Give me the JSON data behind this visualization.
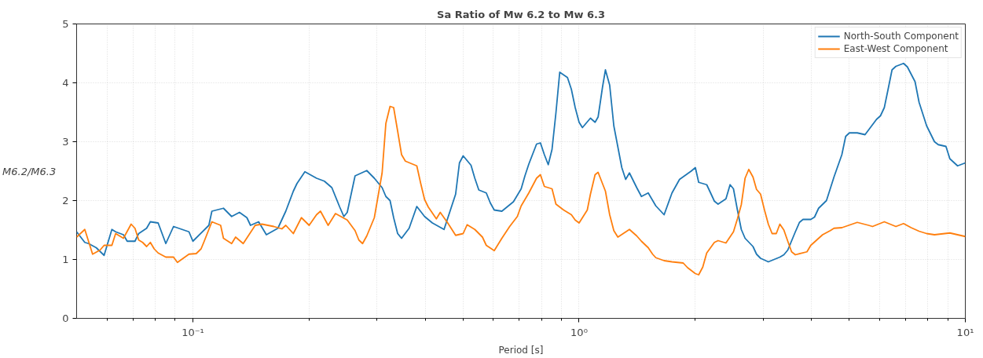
{
  "chart_data": {
    "type": "line",
    "title": "Sa Ratio of Mw 6.2 to Mw 6.3",
    "xlabel": "Period [s]",
    "ylabel": "M6.2/M6.3",
    "log": "x",
    "grid": true,
    "legend": "top right",
    "line_style": "solid",
    "marker": "none",
    "xlim": [
      0.05,
      10
    ],
    "ylim": [
      0,
      5
    ],
    "xticks": [
      {
        "value": 0.06,
        "label": null
      },
      {
        "value": 0.07,
        "label": null
      },
      {
        "value": 0.08,
        "label": null
      },
      {
        "value": 0.09,
        "label": null
      },
      {
        "value": 0.1,
        "label": "10⁻¹"
      },
      {
        "value": 0.2,
        "label": null
      },
      {
        "value": 0.3,
        "label": null
      },
      {
        "value": 0.4,
        "label": null
      },
      {
        "value": 0.5,
        "label": null
      },
      {
        "value": 0.6,
        "label": null
      },
      {
        "value": 0.7,
        "label": null
      },
      {
        "value": 0.8,
        "label": null
      },
      {
        "value": 0.9,
        "label": null
      },
      {
        "value": 1,
        "label": "10⁰"
      },
      {
        "value": 2,
        "label": null
      },
      {
        "value": 3,
        "label": null
      },
      {
        "value": 4,
        "label": null
      },
      {
        "value": 5,
        "label": null
      },
      {
        "value": 6,
        "label": null
      },
      {
        "value": 7,
        "label": null
      },
      {
        "value": 8,
        "label": null
      },
      {
        "value": 9,
        "label": null
      },
      {
        "value": 10,
        "label": "10¹"
      }
    ],
    "yticks": [
      0,
      1,
      2,
      3,
      4,
      5
    ],
    "series": [
      {
        "name": "North-South Component",
        "color": "#1f77b4",
        "x": [
          0.05,
          0.0525,
          0.0537,
          0.0562,
          0.0589,
          0.0617,
          0.0631,
          0.0661,
          0.0676,
          0.0708,
          0.0724,
          0.0759,
          0.0776,
          0.0813,
          0.0851,
          0.0891,
          0.0977,
          0.1,
          0.11,
          0.112,
          0.12,
          0.126,
          0.132,
          0.138,
          0.141,
          0.148,
          0.155,
          0.166,
          0.174,
          0.182,
          0.186,
          0.195,
          0.209,
          0.219,
          0.229,
          0.24,
          0.246,
          0.251,
          0.263,
          0.282,
          0.295,
          0.309,
          0.316,
          0.324,
          0.331,
          0.339,
          0.347,
          0.363,
          0.38,
          0.398,
          0.417,
          0.447,
          0.479,
          0.49,
          0.501,
          0.525,
          0.537,
          0.55,
          0.575,
          0.589,
          0.603,
          0.631,
          0.676,
          0.708,
          0.724,
          0.741,
          0.776,
          0.794,
          0.813,
          0.832,
          0.851,
          0.871,
          0.891,
          0.933,
          0.955,
          0.977,
          1.0,
          1.02,
          1.07,
          1.1,
          1.12,
          1.15,
          1.17,
          1.2,
          1.23,
          1.29,
          1.32,
          1.35,
          1.41,
          1.45,
          1.51,
          1.58,
          1.66,
          1.74,
          1.82,
          1.95,
          2.0,
          2.04,
          2.14,
          2.19,
          2.24,
          2.29,
          2.4,
          2.46,
          2.51,
          2.57,
          2.63,
          2.69,
          2.82,
          2.88,
          2.95,
          3.09,
          3.31,
          3.39,
          3.47,
          3.63,
          3.72,
          3.8,
          3.98,
          4.07,
          4.17,
          4.37,
          4.57,
          4.79,
          4.9,
          5.01,
          5.25,
          5.5,
          5.89,
          6.03,
          6.17,
          6.31,
          6.46,
          6.61,
          6.92,
          7.08,
          7.41,
          7.59,
          7.94,
          8.32,
          8.51,
          8.91,
          9.12,
          9.55,
          10
        ],
        "values": [
          1.47,
          1.29,
          1.27,
          1.2,
          1.07,
          1.51,
          1.47,
          1.42,
          1.31,
          1.31,
          1.44,
          1.53,
          1.64,
          1.62,
          1.27,
          1.56,
          1.47,
          1.31,
          1.58,
          1.82,
          1.87,
          1.73,
          1.8,
          1.71,
          1.58,
          1.64,
          1.42,
          1.53,
          1.82,
          2.16,
          2.29,
          2.49,
          2.38,
          2.33,
          2.22,
          1.89,
          1.73,
          1.8,
          2.42,
          2.51,
          2.38,
          2.22,
          2.07,
          2.0,
          1.71,
          1.44,
          1.36,
          1.53,
          1.9,
          1.73,
          1.62,
          1.51,
          2.11,
          2.64,
          2.76,
          2.6,
          2.38,
          2.18,
          2.13,
          1.96,
          1.84,
          1.82,
          1.98,
          2.2,
          2.42,
          2.62,
          2.96,
          2.98,
          2.78,
          2.61,
          2.87,
          3.49,
          4.18,
          4.09,
          3.89,
          3.58,
          3.33,
          3.24,
          3.4,
          3.33,
          3.42,
          3.93,
          4.22,
          3.96,
          3.27,
          2.56,
          2.36,
          2.47,
          2.22,
          2.07,
          2.13,
          1.91,
          1.76,
          2.13,
          2.36,
          2.5,
          2.56,
          2.31,
          2.27,
          2.13,
          1.99,
          1.94,
          2.03,
          2.27,
          2.2,
          1.84,
          1.51,
          1.36,
          1.22,
          1.09,
          1.02,
          0.96,
          1.04,
          1.08,
          1.16,
          1.47,
          1.63,
          1.68,
          1.68,
          1.72,
          1.87,
          2.0,
          2.4,
          2.78,
          3.09,
          3.15,
          3.15,
          3.12,
          3.38,
          3.44,
          3.58,
          3.89,
          4.22,
          4.28,
          4.33,
          4.27,
          4.02,
          3.67,
          3.27,
          3.0,
          2.95,
          2.92,
          2.71,
          2.59,
          2.64
        ]
      },
      {
        "name": "East-West Component",
        "color": "#ff7f0e",
        "x": [
          0.05,
          0.0525,
          0.055,
          0.0575,
          0.0589,
          0.0617,
          0.0631,
          0.0661,
          0.0692,
          0.0708,
          0.0724,
          0.0741,
          0.0759,
          0.0776,
          0.0794,
          0.0813,
          0.0851,
          0.0891,
          0.0912,
          0.0977,
          0.102,
          0.105,
          0.107,
          0.112,
          0.118,
          0.12,
          0.126,
          0.129,
          0.135,
          0.145,
          0.151,
          0.162,
          0.17,
          0.174,
          0.178,
          0.182,
          0.191,
          0.2,
          0.209,
          0.214,
          0.224,
          0.234,
          0.251,
          0.263,
          0.269,
          0.275,
          0.282,
          0.295,
          0.309,
          0.316,
          0.324,
          0.331,
          0.339,
          0.347,
          0.355,
          0.38,
          0.389,
          0.398,
          0.407,
          0.427,
          0.437,
          0.457,
          0.479,
          0.501,
          0.513,
          0.537,
          0.562,
          0.575,
          0.603,
          0.631,
          0.661,
          0.692,
          0.708,
          0.741,
          0.776,
          0.794,
          0.813,
          0.851,
          0.871,
          0.912,
          0.955,
          0.977,
          1.0,
          1.05,
          1.07,
          1.1,
          1.12,
          1.17,
          1.2,
          1.23,
          1.26,
          1.35,
          1.41,
          1.45,
          1.51,
          1.55,
          1.58,
          1.66,
          1.74,
          1.86,
          1.91,
          2.0,
          2.04,
          2.09,
          2.14,
          2.24,
          2.29,
          2.4,
          2.51,
          2.57,
          2.63,
          2.69,
          2.75,
          2.82,
          2.88,
          2.95,
          3.02,
          3.09,
          3.16,
          3.24,
          3.31,
          3.39,
          3.47,
          3.55,
          3.63,
          3.89,
          3.98,
          4.27,
          4.47,
          4.57,
          4.79,
          5.25,
          5.62,
          5.75,
          6.17,
          6.61,
          6.92,
          7.24,
          7.59,
          7.94,
          8.32,
          9.12,
          9.55,
          10
        ],
        "values": [
          1.38,
          1.51,
          1.09,
          1.16,
          1.24,
          1.24,
          1.44,
          1.36,
          1.6,
          1.53,
          1.33,
          1.29,
          1.22,
          1.29,
          1.18,
          1.11,
          1.04,
          1.04,
          0.95,
          1.09,
          1.1,
          1.18,
          1.31,
          1.64,
          1.58,
          1.36,
          1.27,
          1.38,
          1.27,
          1.58,
          1.6,
          1.56,
          1.52,
          1.58,
          1.51,
          1.44,
          1.71,
          1.58,
          1.76,
          1.82,
          1.58,
          1.78,
          1.67,
          1.49,
          1.33,
          1.27,
          1.4,
          1.71,
          2.47,
          3.31,
          3.6,
          3.58,
          3.18,
          2.78,
          2.67,
          2.59,
          2.29,
          2.02,
          1.89,
          1.69,
          1.8,
          1.62,
          1.41,
          1.44,
          1.59,
          1.51,
          1.38,
          1.24,
          1.15,
          1.36,
          1.56,
          1.73,
          1.91,
          2.13,
          2.38,
          2.44,
          2.24,
          2.2,
          1.94,
          1.84,
          1.76,
          1.67,
          1.62,
          1.84,
          2.11,
          2.44,
          2.48,
          2.16,
          1.76,
          1.49,
          1.38,
          1.51,
          1.4,
          1.31,
          1.2,
          1.09,
          1.03,
          0.98,
          0.96,
          0.94,
          0.86,
          0.76,
          0.74,
          0.87,
          1.11,
          1.29,
          1.32,
          1.28,
          1.47,
          1.69,
          1.93,
          2.38,
          2.53,
          2.4,
          2.19,
          2.11,
          1.84,
          1.6,
          1.44,
          1.44,
          1.6,
          1.5,
          1.31,
          1.13,
          1.08,
          1.13,
          1.24,
          1.42,
          1.49,
          1.53,
          1.54,
          1.63,
          1.58,
          1.56,
          1.64,
          1.56,
          1.61,
          1.54,
          1.48,
          1.44,
          1.42,
          1.45,
          1.42,
          1.39
        ]
      }
    ]
  }
}
